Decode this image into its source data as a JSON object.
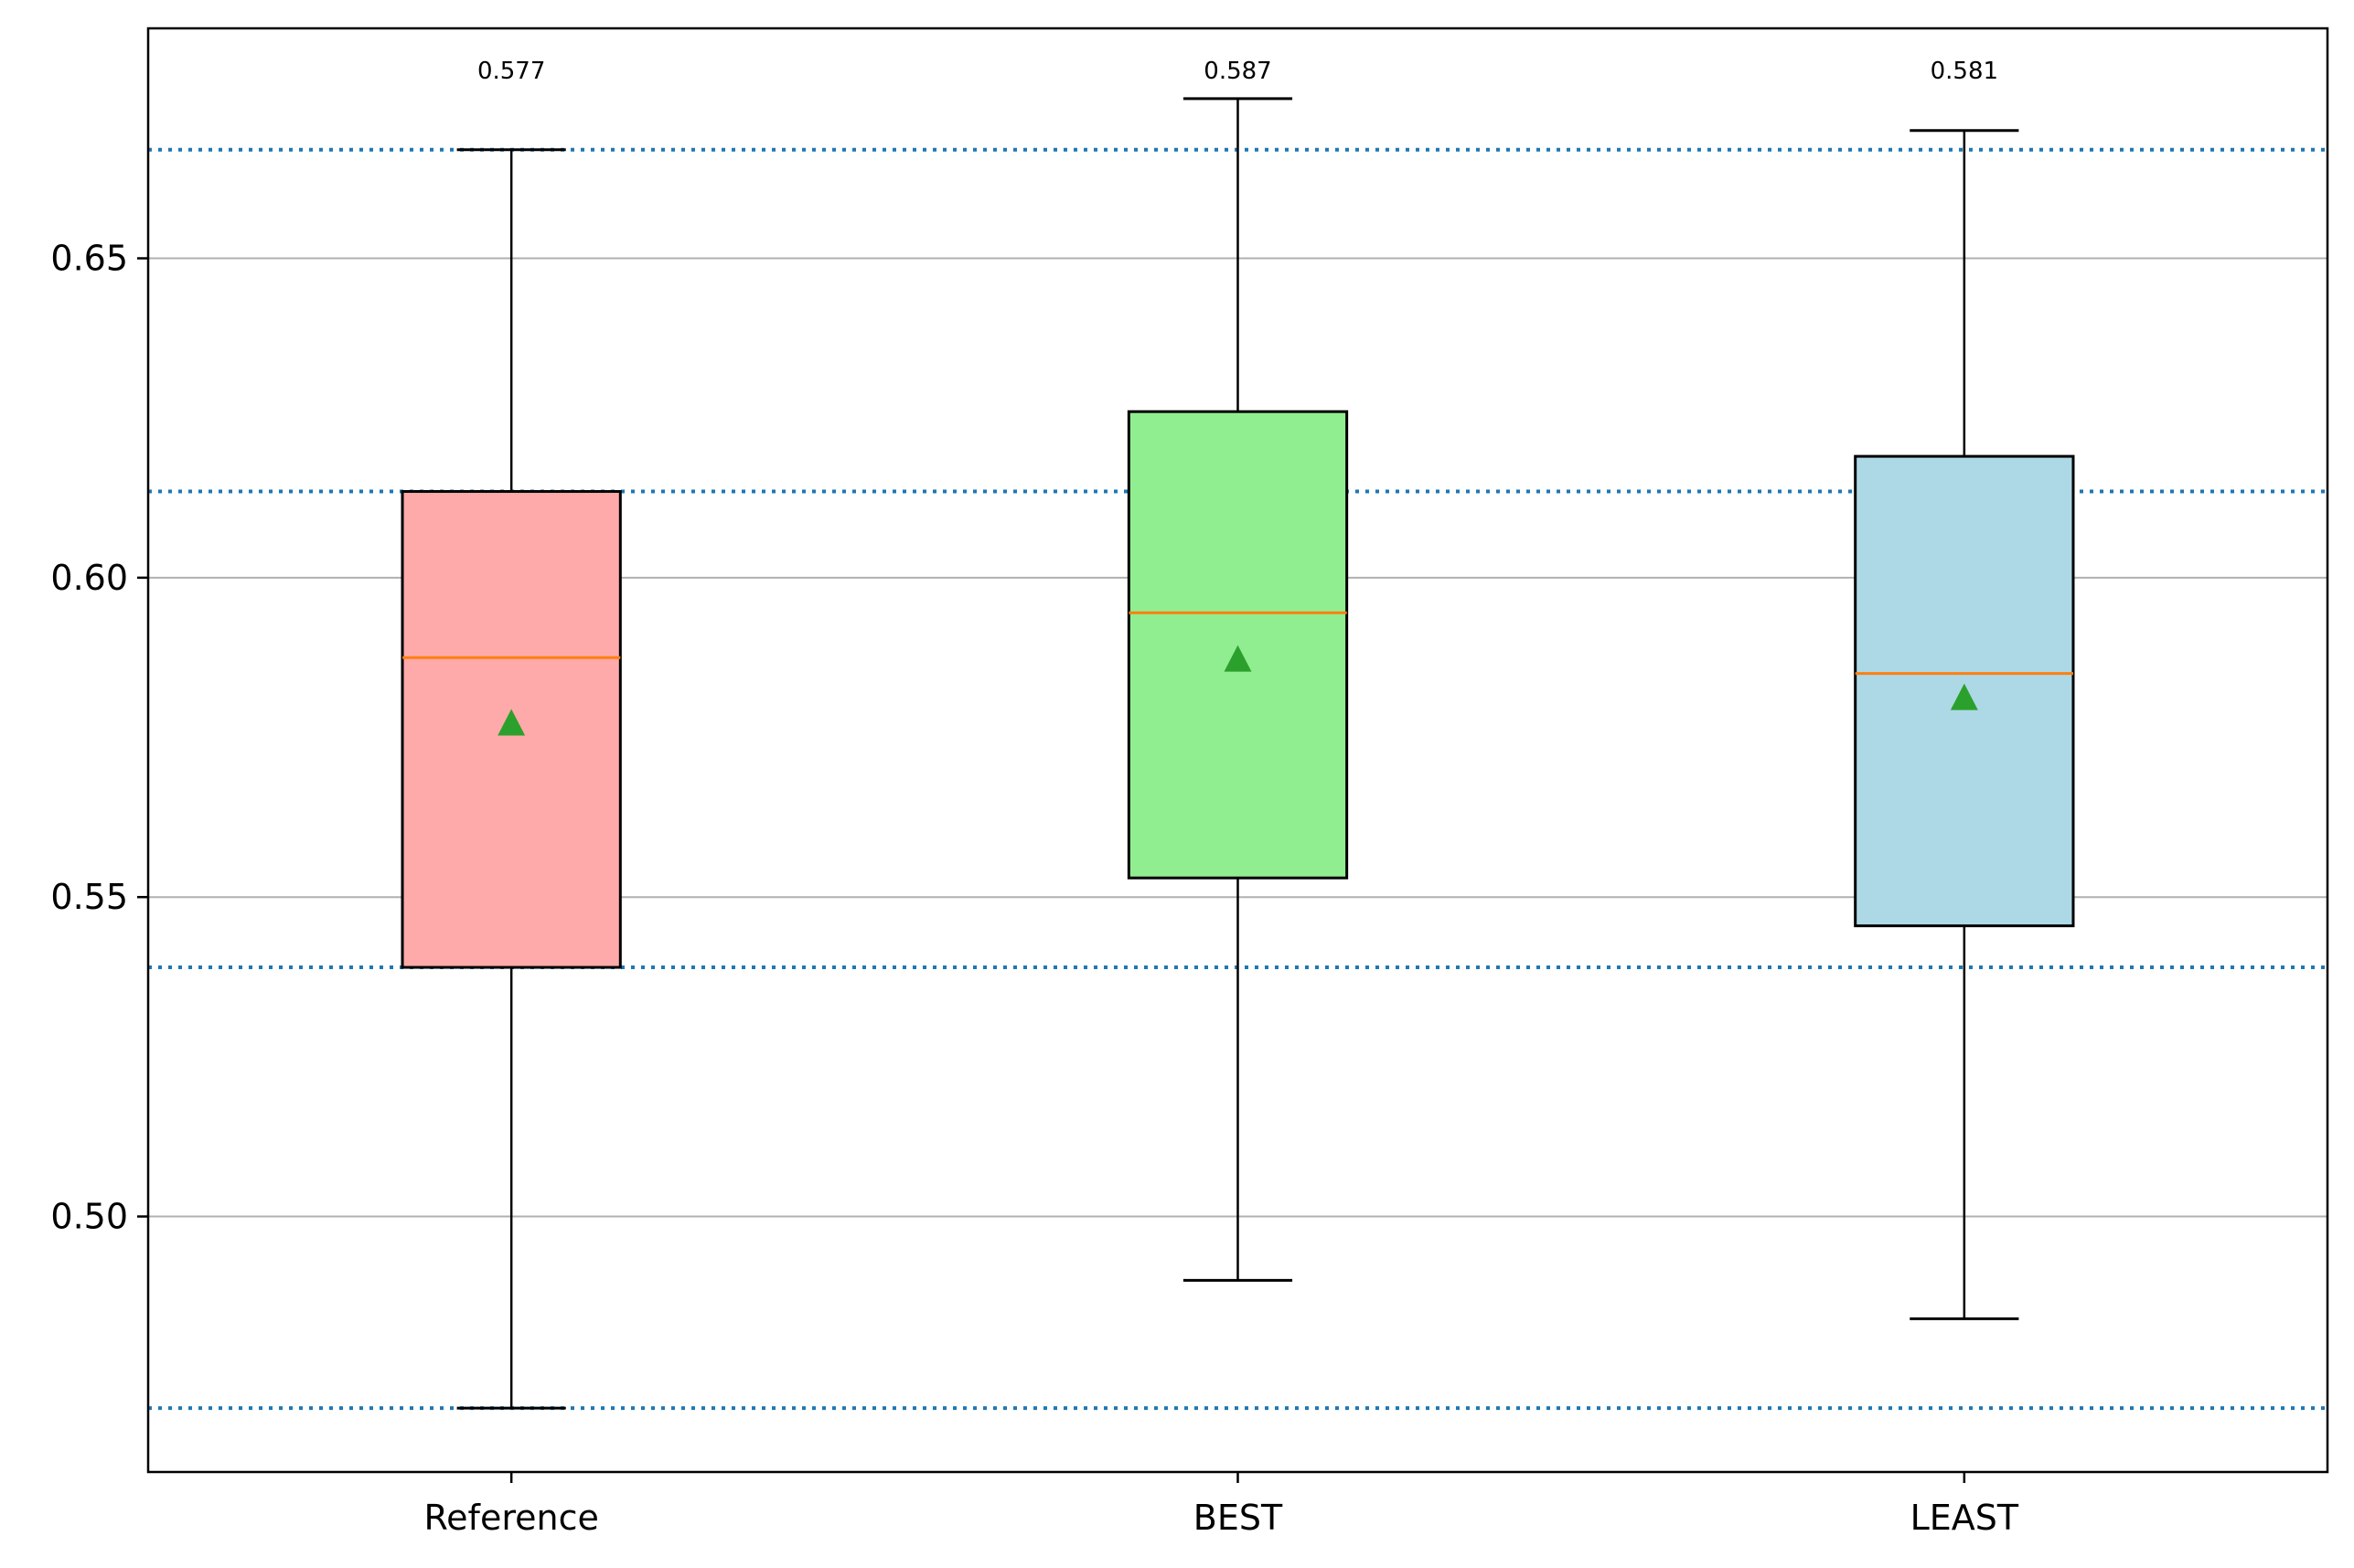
{
  "chart_data": {
    "type": "box",
    "categories": [
      "Reference",
      "BEST",
      "LEAST"
    ],
    "boxes": [
      {
        "category": "Reference",
        "whisker_low": 0.47,
        "q1": 0.539,
        "median": 0.5875,
        "q3": 0.6135,
        "whisker_high": 0.667,
        "mean": 0.577,
        "mean_label": "0.577",
        "color": "#ffaaaa"
      },
      {
        "category": "BEST",
        "whisker_low": 0.49,
        "q1": 0.553,
        "median": 0.5945,
        "q3": 0.626,
        "whisker_high": 0.675,
        "mean": 0.587,
        "mean_label": "0.587",
        "color": "#90ee90"
      },
      {
        "category": "LEAST",
        "whisker_low": 0.484,
        "q1": 0.5455,
        "median": 0.585,
        "q3": 0.619,
        "whisker_high": 0.67,
        "mean": 0.581,
        "mean_label": "0.581",
        "color": "#add8e6"
      }
    ],
    "yticks": [
      "0.50",
      "0.55",
      "0.60",
      "0.65"
    ],
    "ylim": [
      0.46,
      0.686
    ],
    "reference_lines": [
      0.47,
      0.539,
      0.6135,
      0.667
    ],
    "grid": "horizontal",
    "title": "",
    "xlabel": "",
    "ylabel": "",
    "colors": {
      "median": "#ff7f0e",
      "mean_marker": "#2ca02c",
      "reference_line": "#1f77b4",
      "grid": "#b0b0b0",
      "box_edge": "#000000"
    }
  }
}
